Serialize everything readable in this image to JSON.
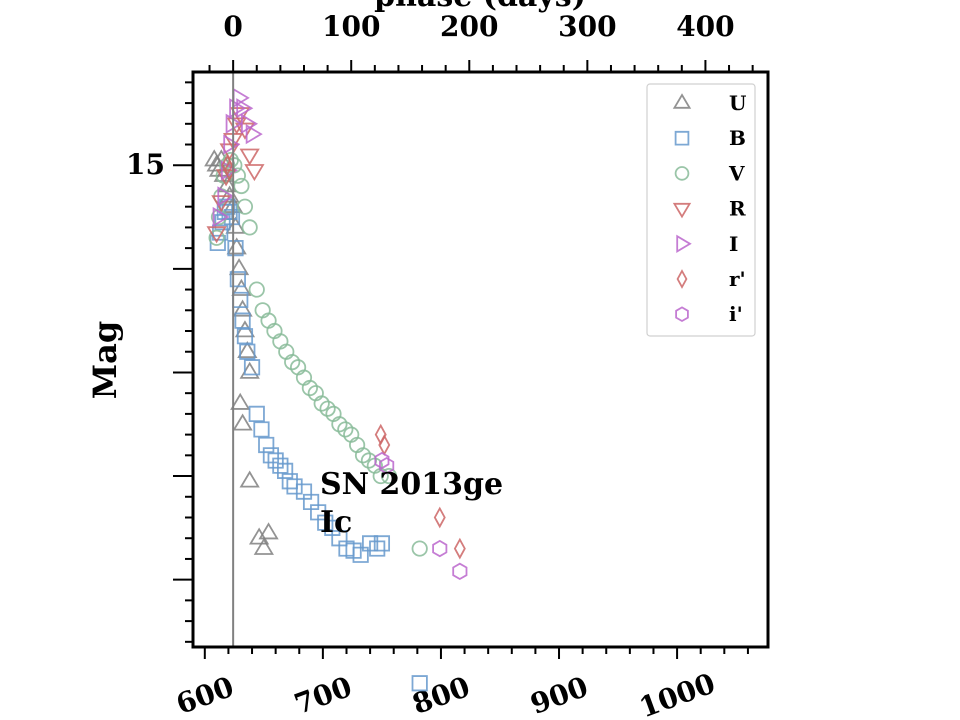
{
  "chart_data": {
    "type": "scatter",
    "title": "",
    "top_axis_label": "phase (days)",
    "xlabel": "",
    "ylabel": "Mag",
    "x_ticks": [
      "600",
      "700",
      "800",
      "900",
      "1000"
    ],
    "top_ticks": [
      "0",
      "100",
      "200",
      "300",
      "400"
    ],
    "y_ticks": [
      "15"
    ],
    "xlim": [
      590,
      1077
    ],
    "top_xlim": [
      -34,
      453
    ],
    "ylim_inverted": [
      19.65,
      14.1
    ],
    "phase_zero_line": 0,
    "annotation": [
      "SN 2013ge",
      "Ic"
    ],
    "legend_position": "upper right",
    "grid": false,
    "series": [
      {
        "name": "U",
        "marker": "triangle-up",
        "color": "#808080",
        "points": [
          [
            -16,
            14.95
          ],
          [
            -14,
            15.0
          ],
          [
            -12,
            15.05
          ],
          [
            -10,
            14.95
          ],
          [
            -8,
            15.1
          ],
          [
            -5,
            15.2
          ],
          [
            -3,
            15.3
          ],
          [
            0,
            15.4
          ],
          [
            2,
            15.6
          ],
          [
            3,
            15.8
          ],
          [
            5,
            16.0
          ],
          [
            7,
            16.2
          ],
          [
            8,
            16.4
          ],
          [
            10,
            16.6
          ],
          [
            12,
            16.8
          ],
          [
            14,
            17.0
          ],
          [
            6,
            17.3
          ],
          [
            8,
            17.5
          ],
          [
            14,
            18.05
          ],
          [
            22,
            18.6
          ],
          [
            26,
            18.7
          ],
          [
            30,
            18.55
          ]
        ]
      },
      {
        "name": "B",
        "marker": "square",
        "color": "#6699cc",
        "points": [
          [
            -13,
            15.75
          ],
          [
            -11,
            15.65
          ],
          [
            -9,
            15.55
          ],
          [
            -7,
            15.45
          ],
          [
            -5,
            15.4
          ],
          [
            -3,
            15.45
          ],
          [
            -1,
            15.5
          ],
          [
            2,
            15.8
          ],
          [
            4,
            16.1
          ],
          [
            6,
            16.3
          ],
          [
            8,
            16.5
          ],
          [
            10,
            16.65
          ],
          [
            12,
            16.8
          ],
          [
            16,
            16.95
          ],
          [
            20,
            17.4
          ],
          [
            24,
            17.55
          ],
          [
            28,
            17.7
          ],
          [
            32,
            17.8
          ],
          [
            36,
            17.85
          ],
          [
            40,
            17.9
          ],
          [
            44,
            17.95
          ],
          [
            48,
            18.05
          ],
          [
            52,
            18.1
          ],
          [
            60,
            18.15
          ],
          [
            66,
            18.25
          ],
          [
            72,
            18.35
          ],
          [
            78,
            18.45
          ],
          [
            84,
            18.5
          ],
          [
            90,
            18.6
          ],
          [
            96,
            18.7
          ],
          [
            102,
            18.72
          ],
          [
            108,
            18.76
          ],
          [
            116,
            18.65
          ],
          [
            122,
            18.7
          ],
          [
            126,
            18.65
          ],
          [
            158,
            20.0
          ]
        ]
      },
      {
        "name": "V",
        "marker": "circle",
        "color": "#88bb99",
        "points": [
          [
            -14,
            15.7
          ],
          [
            -12,
            15.5
          ],
          [
            -10,
            15.3
          ],
          [
            -8,
            15.1
          ],
          [
            -5,
            15.0
          ],
          [
            -2,
            14.95
          ],
          [
            1,
            15.0
          ],
          [
            4,
            15.1
          ],
          [
            7,
            15.2
          ],
          [
            10,
            15.4
          ],
          [
            14,
            15.6
          ],
          [
            20,
            16.2
          ],
          [
            25,
            16.4
          ],
          [
            30,
            16.5
          ],
          [
            35,
            16.6
          ],
          [
            40,
            16.7
          ],
          [
            45,
            16.8
          ],
          [
            50,
            16.9
          ],
          [
            55,
            16.95
          ],
          [
            60,
            17.05
          ],
          [
            65,
            17.15
          ],
          [
            70,
            17.2
          ],
          [
            75,
            17.3
          ],
          [
            80,
            17.35
          ],
          [
            85,
            17.4
          ],
          [
            90,
            17.5
          ],
          [
            95,
            17.55
          ],
          [
            100,
            17.6
          ],
          [
            105,
            17.7
          ],
          [
            110,
            17.8
          ],
          [
            115,
            17.85
          ],
          [
            120,
            17.9
          ],
          [
            125,
            18.0
          ],
          [
            132,
            18.0
          ],
          [
            158,
            18.7
          ]
        ]
      },
      {
        "name": "R",
        "marker": "triangle-down",
        "color": "#cc6666",
        "points": [
          [
            -14,
            15.65
          ],
          [
            -10,
            15.35
          ],
          [
            -6,
            15.1
          ],
          [
            -3,
            14.85
          ],
          [
            0,
            14.75
          ],
          [
            3,
            14.6
          ],
          [
            6,
            14.5
          ],
          [
            10,
            14.65
          ],
          [
            14,
            14.9
          ],
          [
            18,
            15.05
          ]
        ]
      },
      {
        "name": "I",
        "marker": "triangle-right",
        "color": "#bb66cc",
        "points": [
          [
            -12,
            15.5
          ],
          [
            -8,
            15.3
          ],
          [
            -5,
            15.05
          ],
          [
            -3,
            14.8
          ],
          [
            -1,
            14.6
          ],
          [
            2,
            14.45
          ],
          [
            5,
            14.35
          ],
          [
            8,
            14.45
          ],
          [
            12,
            14.6
          ],
          [
            16,
            14.7
          ]
        ]
      },
      {
        "name": "r'",
        "marker": "thin-diamond",
        "color": "#cc6666",
        "points": [
          [
            -5,
            15.0
          ],
          [
            -3,
            15.05
          ],
          [
            125,
            17.6
          ],
          [
            128,
            17.7
          ],
          [
            175,
            18.4
          ],
          [
            192,
            18.7
          ]
        ]
      },
      {
        "name": "i'",
        "marker": "hexagon",
        "color": "#bb66cc",
        "points": [
          [
            126,
            17.85
          ],
          [
            130,
            17.9
          ],
          [
            175,
            18.7
          ],
          [
            192,
            18.92
          ]
        ]
      }
    ]
  }
}
